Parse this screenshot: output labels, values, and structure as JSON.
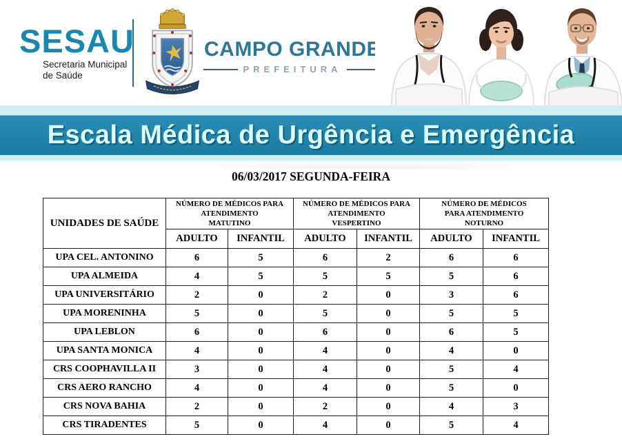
{
  "logo": {
    "sesau_title": "SESAU",
    "sesau_subtitle_line1": "Secretaria Municipal",
    "sesau_subtitle_line2": "de Saúde",
    "city_name": "CAMPO GRANDE",
    "city_label": "PREFEITURA"
  },
  "banner": {
    "title": "Escala Médica de Urgência e Emergência",
    "background_color": "#1e7fa9",
    "text_color": "#d8feff"
  },
  "date_heading": "06/03/2017 SEGUNDA-FEIRA",
  "table": {
    "unit_column_header": "UNIDADES DE SAÚDE",
    "groups": [
      {
        "lines": [
          "NÚMERO DE MÉDICOS PARA",
          "ATENDIMENTO",
          "MATUTINO"
        ]
      },
      {
        "lines": [
          "NÚMERO DE MÉDICOS PARA",
          "ATENDIMENTO",
          "VESPERTINO"
        ]
      },
      {
        "lines": [
          "NÚMERO DE MÉDICOS",
          "PARA ATENDIMENTO",
          "NOTURNO"
        ]
      }
    ],
    "sub_headers": [
      "ADULTO",
      "INFANTIL"
    ],
    "rows": [
      {
        "unit": "UPA CEL. ANTONINO",
        "values": [
          6,
          5,
          6,
          2,
          6,
          6
        ]
      },
      {
        "unit": "UPA ALMEIDA",
        "values": [
          4,
          5,
          5,
          5,
          5,
          6
        ]
      },
      {
        "unit": "UPA UNIVERSITÁRIO",
        "values": [
          2,
          0,
          2,
          0,
          3,
          6
        ]
      },
      {
        "unit": "UPA MORENINHA",
        "values": [
          5,
          0,
          5,
          0,
          5,
          5
        ]
      },
      {
        "unit": "UPA LEBLON",
        "values": [
          6,
          0,
          6,
          0,
          6,
          5
        ]
      },
      {
        "unit": "UPA SANTA MONICA",
        "values": [
          4,
          0,
          4,
          0,
          4,
          0
        ]
      },
      {
        "unit": "CRS COOPHAVILLA II",
        "values": [
          3,
          0,
          4,
          0,
          5,
          4
        ]
      },
      {
        "unit": "CRS AERO RANCHO",
        "values": [
          4,
          0,
          4,
          0,
          5,
          0
        ]
      },
      {
        "unit": "CRS NOVA BAHIA",
        "values": [
          2,
          0,
          2,
          0,
          4,
          3
        ]
      },
      {
        "unit": "CRS TIRADENTES",
        "values": [
          5,
          0,
          4,
          0,
          5,
          4
        ]
      }
    ]
  },
  "icons": {
    "coat_of_arms": "campo-grande-coat-of-arms",
    "doctors_photo": "three-doctors-photo"
  },
  "colors": {
    "logo_teal": "#1b87b0",
    "city_teal": "#2d7696",
    "prefeitura_gray": "#93a1ab",
    "strip_cyan": "#cfeef6",
    "banner_blue": "#1e7fa9",
    "table_border": "#1a1a1a"
  }
}
